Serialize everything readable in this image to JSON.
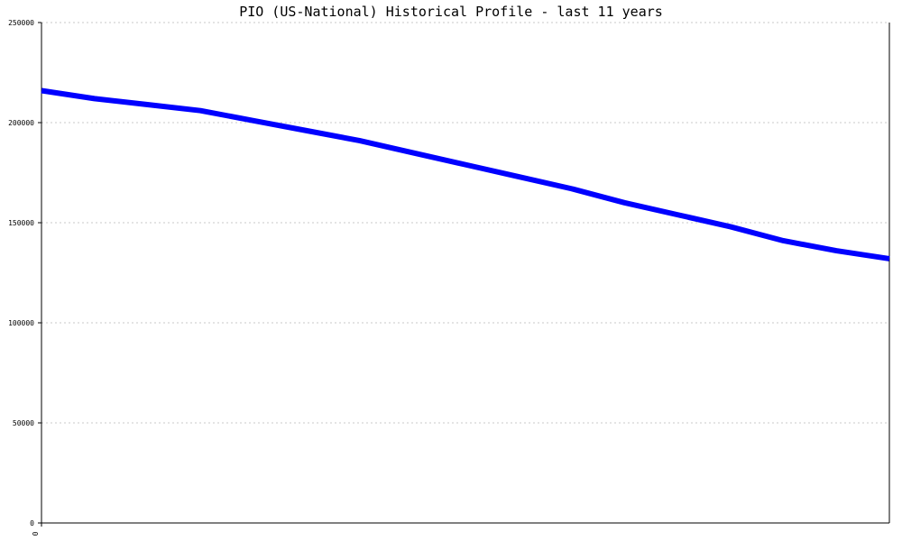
{
  "chart_data": {
    "type": "line",
    "title": "PIO (US-National) Historical Profile - last 11 years",
    "xlabel": "",
    "ylabel": "",
    "x_tick_labels": [
      "0"
    ],
    "y_ticks": [
      0,
      50000,
      100000,
      150000,
      200000,
      250000
    ],
    "y_tick_labels": [
      "0",
      "50000",
      "100000",
      "150000",
      "200000",
      "250000"
    ],
    "ylim": [
      0,
      250000
    ],
    "grid": true,
    "legend": "none",
    "series": [
      {
        "values": [
          216000,
          212000,
          209000,
          206000,
          201000,
          196000,
          191000,
          185000,
          179000,
          173000,
          167000,
          160000,
          154000,
          148000,
          141000,
          136000,
          132000
        ]
      }
    ],
    "colors": {
      "line": "#0000ff",
      "axis": "#000000",
      "grid": "#c8c8c8",
      "background": "#ffffff"
    }
  }
}
